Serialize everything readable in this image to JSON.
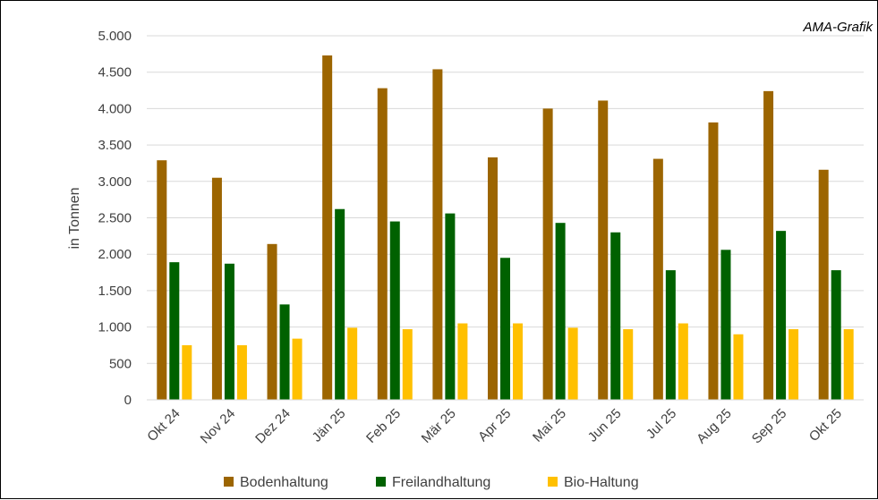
{
  "chart_data": {
    "type": "bar",
    "source_label": "AMA-Grafik",
    "ylabel": "in Tonnen",
    "xlabel": "",
    "ylim": [
      0,
      5000
    ],
    "yticks": [
      0,
      500,
      1000,
      1500,
      2000,
      2500,
      3000,
      3500,
      4000,
      4500,
      5000
    ],
    "ytick_labels": [
      "0",
      "500",
      "1.000",
      "1.500",
      "2.000",
      "2.500",
      "3.000",
      "3.500",
      "4.000",
      "4.500",
      "5.000"
    ],
    "grid": "horizontal",
    "legend_position": "bottom",
    "categories": [
      "Okt 24",
      "Nov 24",
      "Dez 24",
      "Jän 25",
      "Feb 25",
      "Mär 25",
      "Apr 25",
      "Mai 25",
      "Jun 25",
      "Jul 25",
      "Aug 25",
      "Sep 25",
      "Okt 25"
    ],
    "series": [
      {
        "name": "Bodenhaltung",
        "color": "#9c6500",
        "values": [
          3290,
          3050,
          2140,
          4730,
          4280,
          4540,
          3330,
          4000,
          4110,
          3310,
          3810,
          4240,
          3160
        ]
      },
      {
        "name": "Freilandhaltung",
        "color": "#006100",
        "values": [
          1890,
          1870,
          1310,
          2620,
          2450,
          2560,
          1950,
          2430,
          2300,
          1780,
          2060,
          2320,
          1780
        ]
      },
      {
        "name": "Bio-Haltung",
        "color": "#ffc000",
        "values": [
          750,
          750,
          840,
          990,
          970,
          1050,
          1050,
          990,
          970,
          1050,
          900,
          970,
          970
        ]
      }
    ]
  }
}
